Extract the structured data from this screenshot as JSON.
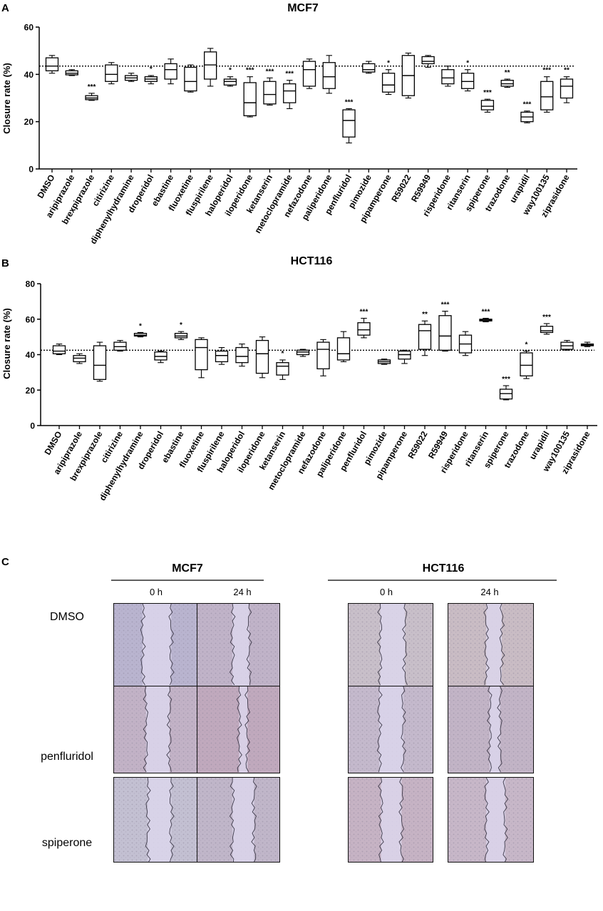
{
  "panels": {
    "A": {
      "letter": "A",
      "title": "MCF7"
    },
    "B": {
      "letter": "B",
      "title": "HCT116"
    },
    "C": {
      "letter": "C"
    }
  },
  "chart_data": [
    {
      "type": "box",
      "title": "MCF7",
      "ylabel": "Closure rate (%)",
      "ylim": [
        0,
        60
      ],
      "yticks": [
        0,
        20,
        40,
        60
      ],
      "reference_line": 43.5,
      "reference_style": "dotted",
      "categories": [
        "DMSO",
        "aripiprazole",
        "brexpiprazole",
        "citirizine",
        "diphenylhydramine",
        "droperidol",
        "ebastine",
        "fluoxetine",
        "fluspirilene",
        "haloperidol",
        "iloperidone",
        "ketanserin",
        "metoclopramide",
        "nefazodone",
        "paliperidone",
        "penfluridol",
        "pimozide",
        "pipamperone",
        "R59022",
        "R59949",
        "risperidone",
        "ritanserin",
        "spiperone",
        "trazodone",
        "urapidil",
        "way100135",
        "ziprasidone"
      ],
      "significance": [
        "",
        "",
        "***",
        "",
        "",
        "*",
        "",
        "",
        "",
        "*",
        "***",
        "***",
        "***",
        "",
        "",
        "***",
        "",
        "*",
        "",
        "",
        "",
        "*",
        "***",
        "**",
        "***",
        "***",
        "**"
      ],
      "boxes": [
        {
          "min": 40.5,
          "q1": 41.5,
          "median": 43.5,
          "q3": 47,
          "max": 48
        },
        {
          "min": 39.5,
          "q1": 39.8,
          "median": 40.5,
          "q3": 41.5,
          "max": 42
        },
        {
          "min": 29,
          "q1": 29.3,
          "median": 30,
          "q3": 31,
          "max": 32
        },
        {
          "min": 36,
          "q1": 37,
          "median": 40,
          "q3": 44,
          "max": 45
        },
        {
          "min": 37,
          "q1": 37.5,
          "median": 38.5,
          "q3": 39.5,
          "max": 40.5
        },
        {
          "min": 36,
          "q1": 37,
          "median": 38,
          "q3": 39,
          "max": 39.5
        },
        {
          "min": 36,
          "q1": 38,
          "median": 42,
          "q3": 44.5,
          "max": 46.5
        },
        {
          "min": 32.5,
          "q1": 33,
          "median": 37,
          "q3": 43,
          "max": 44
        },
        {
          "min": 35,
          "q1": 38,
          "median": 44,
          "q3": 49.5,
          "max": 51
        },
        {
          "min": 35,
          "q1": 35.5,
          "median": 37,
          "q3": 38,
          "max": 39
        },
        {
          "min": 22,
          "q1": 22.5,
          "median": 28,
          "q3": 36.5,
          "max": 39
        },
        {
          "min": 27,
          "q1": 27.5,
          "median": 31.5,
          "q3": 37,
          "max": 38.5
        },
        {
          "min": 25.5,
          "q1": 28,
          "median": 33,
          "q3": 36,
          "max": 37.5
        },
        {
          "min": 34,
          "q1": 35,
          "median": 42,
          "q3": 45.5,
          "max": 46.5
        },
        {
          "min": 32,
          "q1": 34,
          "median": 39,
          "q3": 45,
          "max": 48
        },
        {
          "min": 11,
          "q1": 13.5,
          "median": 20.5,
          "q3": 25,
          "max": 25.5
        },
        {
          "min": 40.5,
          "q1": 41,
          "median": 42,
          "q3": 44.5,
          "max": 45.5
        },
        {
          "min": 31.5,
          "q1": 32.5,
          "median": 35.5,
          "q3": 40.5,
          "max": 42
        },
        {
          "min": 30,
          "q1": 31,
          "median": 39.5,
          "q3": 48,
          "max": 49
        },
        {
          "min": 43,
          "q1": 44.5,
          "median": 45.5,
          "q3": 47.5,
          "max": 48
        },
        {
          "min": 35,
          "q1": 36,
          "median": 38.5,
          "q3": 42,
          "max": 43.5
        },
        {
          "min": 33,
          "q1": 34,
          "median": 37,
          "q3": 40.5,
          "max": 42
        },
        {
          "min": 24,
          "q1": 25,
          "median": 26.5,
          "q3": 29,
          "max": 29.5
        },
        {
          "min": 34.5,
          "q1": 35,
          "median": 36,
          "q3": 37.5,
          "max": 38
        },
        {
          "min": 19.5,
          "q1": 20,
          "median": 22,
          "q3": 24,
          "max": 24.5
        },
        {
          "min": 24,
          "q1": 25,
          "median": 30.5,
          "q3": 37,
          "max": 39
        },
        {
          "min": 28,
          "q1": 30,
          "median": 35,
          "q3": 38,
          "max": 39
        }
      ]
    },
    {
      "type": "box",
      "title": "HCT116",
      "ylabel": "Closure rate (%)",
      "ylim": [
        0,
        80
      ],
      "yticks": [
        0,
        20,
        40,
        60,
        80
      ],
      "reference_line": 42.5,
      "reference_style": "dotted",
      "categories": [
        "DMSO",
        "aripiprazole",
        "brexpiprazole",
        "citirizine",
        "diphenylhydramine",
        "droperidol",
        "ebastine",
        "fluoxetine",
        "fluspirilene",
        "haloperidol",
        "iloperidone",
        "ketanserin",
        "metoclopramide",
        "nefazodone",
        "paliperidone",
        "penfluridol",
        "pimozide",
        "pipamperone",
        "R59022",
        "R59949",
        "risperidone",
        "ritanserin",
        "spiperone",
        "trazodone",
        "urapidil",
        "way100135",
        "ziprasidone"
      ],
      "significance": [
        "",
        "",
        "",
        "",
        "*",
        "",
        "*",
        "",
        "",
        "",
        "",
        "*",
        "",
        "",
        "",
        "***",
        "",
        "",
        "**",
        "***",
        "",
        "***",
        "***",
        "*",
        "***",
        "",
        ""
      ],
      "boxes": [
        {
          "min": 40,
          "q1": 40.5,
          "median": 42,
          "q3": 45,
          "max": 46
        },
        {
          "min": 35,
          "q1": 36,
          "median": 38,
          "q3": 39.5,
          "max": 40.5
        },
        {
          "min": 25,
          "q1": 26,
          "median": 34,
          "q3": 45,
          "max": 47
        },
        {
          "min": 42,
          "q1": 42.5,
          "median": 44.5,
          "q3": 47,
          "max": 48
        },
        {
          "min": 50,
          "q1": 50.5,
          "median": 51,
          "q3": 52,
          "max": 52.5
        },
        {
          "min": 35.5,
          "q1": 37,
          "median": 39,
          "q3": 41.5,
          "max": 42
        },
        {
          "min": 48.5,
          "q1": 49.5,
          "median": 50.5,
          "q3": 52,
          "max": 53
        },
        {
          "min": 27,
          "q1": 31.5,
          "median": 44,
          "q3": 48.5,
          "max": 49.5
        },
        {
          "min": 34.5,
          "q1": 36,
          "median": 39.5,
          "q3": 42,
          "max": 44
        },
        {
          "min": 33.5,
          "q1": 35.5,
          "median": 39,
          "q3": 44,
          "max": 46
        },
        {
          "min": 27,
          "q1": 29.5,
          "median": 40.5,
          "q3": 48,
          "max": 50
        },
        {
          "min": 26,
          "q1": 28.5,
          "median": 33.5,
          "q3": 35.5,
          "max": 37
        },
        {
          "min": 39,
          "q1": 40,
          "median": 41.5,
          "q3": 42.5,
          "max": 43
        },
        {
          "min": 28,
          "q1": 32,
          "median": 43,
          "q3": 47,
          "max": 48.5
        },
        {
          "min": 36,
          "q1": 37,
          "median": 40.5,
          "q3": 49.5,
          "max": 53
        },
        {
          "min": 49.5,
          "q1": 51,
          "median": 54,
          "q3": 58,
          "max": 60.5
        },
        {
          "min": 34.5,
          "q1": 35,
          "median": 36,
          "q3": 37,
          "max": 37.5
        },
        {
          "min": 35,
          "q1": 37.5,
          "median": 40,
          "q3": 42,
          "max": 42.5
        },
        {
          "min": 39.5,
          "q1": 43,
          "median": 53.5,
          "q3": 57,
          "max": 59
        },
        {
          "min": 42,
          "q1": 42.5,
          "median": 50.5,
          "q3": 62,
          "max": 64.5
        },
        {
          "min": 39.5,
          "q1": 41,
          "median": 46,
          "q3": 51,
          "max": 53
        },
        {
          "min": 58.5,
          "q1": 59,
          "median": 59.5,
          "q3": 60,
          "max": 60.5
        },
        {
          "min": 14.5,
          "q1": 15,
          "median": 18,
          "q3": 20.5,
          "max": 22.5
        },
        {
          "min": 26.5,
          "q1": 28,
          "median": 34,
          "q3": 41,
          "max": 42
        },
        {
          "min": 51.5,
          "q1": 52.5,
          "median": 53.5,
          "q3": 56,
          "max": 57.5
        },
        {
          "min": 42.5,
          "q1": 43,
          "median": 45,
          "q3": 47,
          "max": 48
        },
        {
          "min": 44.5,
          "q1": 45,
          "median": 45.5,
          "q3": 46,
          "max": 47
        }
      ]
    }
  ],
  "panel_c": {
    "groups": [
      {
        "name": "MCF7",
        "timepoints": [
          "0 h",
          "24 h"
        ]
      },
      {
        "name": "HCT116",
        "timepoints": [
          "0 h",
          "24 h"
        ]
      }
    ],
    "rows": [
      "DMSO",
      "penfluridol",
      "spiperone"
    ]
  }
}
